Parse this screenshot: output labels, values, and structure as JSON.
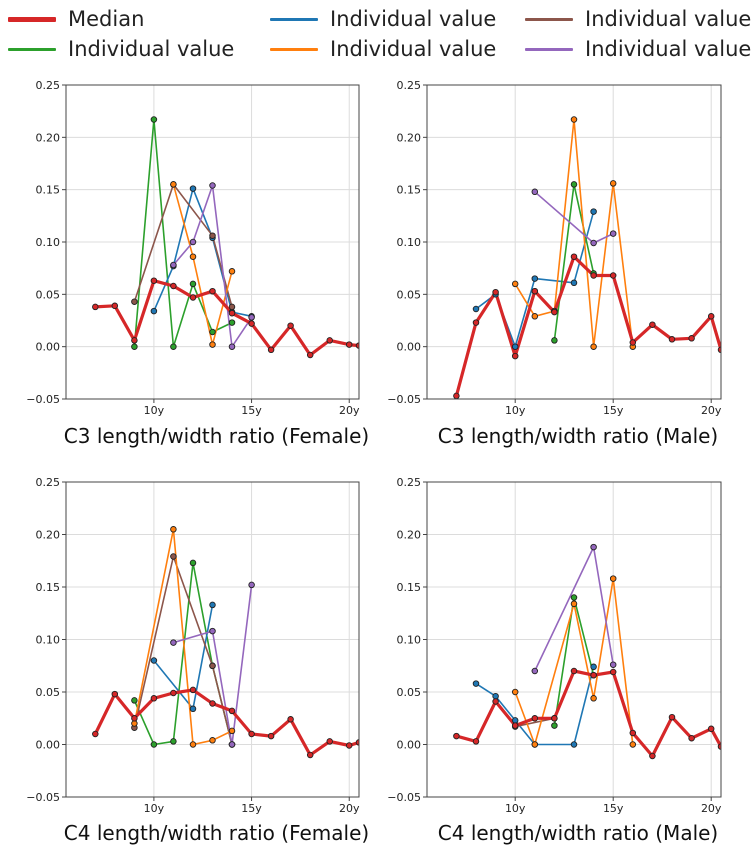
{
  "legend": [
    {
      "label": "Median",
      "color": "#d62728",
      "width": 5
    },
    {
      "label": "Individual value",
      "color": "#1f77b4",
      "width": 3
    },
    {
      "label": "Individual value",
      "color": "#8c564b",
      "width": 3
    },
    {
      "label": "Individual value",
      "color": "#2ca02c",
      "width": 3
    },
    {
      "label": "Individual value",
      "color": "#ff7f0e",
      "width": 3
    },
    {
      "label": "Individual value",
      "color": "#9467bd",
      "width": 3
    }
  ],
  "chart_data": [
    {
      "type": "line",
      "title": "C3 length/width ratio (Female)",
      "xlim": [
        5.5,
        20.5
      ],
      "ylim": [
        -0.05,
        0.25
      ],
      "xticks": [
        {
          "value": 10,
          "label": "10y"
        },
        {
          "value": 15,
          "label": "15y"
        },
        {
          "value": 20,
          "label": "20y"
        }
      ],
      "yticks": [
        {
          "value": -0.05,
          "label": "−0.05"
        },
        {
          "value": 0,
          "label": "0.00"
        },
        {
          "value": 0.05,
          "label": "0.05"
        },
        {
          "value": 0.1,
          "label": "0.10"
        },
        {
          "value": 0.15,
          "label": "0.15"
        },
        {
          "value": 0.2,
          "label": "0.20"
        },
        {
          "value": 0.25,
          "label": "0.25"
        }
      ],
      "grid": true,
      "series": [
        {
          "color": "#2ca02c",
          "x": [
            9,
            10,
            11,
            12,
            13,
            14
          ],
          "y": [
            0.0,
            0.217,
            0.0,
            0.06,
            0.014,
            0.023
          ]
        },
        {
          "color": "#1f77b4",
          "x": [
            10,
            11,
            12,
            13,
            14,
            15
          ],
          "y": [
            0.034,
            0.077,
            0.151,
            0.104,
            0.033,
            0.029
          ]
        },
        {
          "color": "#8c564b",
          "x": [
            9,
            11,
            13,
            14
          ],
          "y": [
            0.043,
            0.155,
            0.106,
            0.038
          ]
        },
        {
          "color": "#ff7f0e",
          "x": [
            11,
            12,
            13,
            14
          ],
          "y": [
            0.155,
            0.086,
            0.002,
            0.072
          ]
        },
        {
          "color": "#9467bd",
          "x": [
            11,
            12,
            13,
            14,
            15
          ],
          "y": [
            0.078,
            0.1,
            0.154,
            0.0,
            0.028
          ]
        },
        {
          "color": "#d62728",
          "median": true,
          "x": [
            7,
            8,
            9,
            10,
            11,
            12,
            13,
            14,
            15,
            16,
            17,
            18,
            19,
            20,
            20.5
          ],
          "y": [
            0.038,
            0.039,
            0.006,
            0.063,
            0.058,
            0.047,
            0.053,
            0.032,
            0.022,
            -0.003,
            0.02,
            -0.008,
            0.006,
            0.002,
            0.001
          ]
        }
      ]
    },
    {
      "type": "line",
      "title": "C3 length/width ratio (Male)",
      "xlim": [
        5.5,
        20.5
      ],
      "ylim": [
        -0.05,
        0.25
      ],
      "xticks": [
        {
          "value": 10,
          "label": "10y"
        },
        {
          "value": 15,
          "label": "15y"
        },
        {
          "value": 20,
          "label": "20y"
        }
      ],
      "yticks": [
        {
          "value": -0.05,
          "label": "−0.05"
        },
        {
          "value": 0,
          "label": "0.00"
        },
        {
          "value": 0.05,
          "label": "0.05"
        },
        {
          "value": 0.1,
          "label": "0.10"
        },
        {
          "value": 0.15,
          "label": "0.15"
        },
        {
          "value": 0.2,
          "label": "0.20"
        },
        {
          "value": 0.25,
          "label": "0.25"
        }
      ],
      "grid": true,
      "series": [
        {
          "color": "#1f77b4",
          "x": [
            8,
            9,
            10,
            11,
            13,
            14
          ],
          "y": [
            0.036,
            0.05,
            0.0,
            0.065,
            0.061,
            0.129
          ]
        },
        {
          "color": "#8c564b",
          "x": [
            11,
            12
          ],
          "y": [
            0.053,
            0.034
          ]
        },
        {
          "color": "#2ca02c",
          "x": [
            12,
            13,
            14
          ],
          "y": [
            0.006,
            0.155,
            0.07
          ]
        },
        {
          "color": "#ff7f0e",
          "x": [
            10,
            11,
            12,
            13,
            14,
            15,
            16
          ],
          "y": [
            0.06,
            0.029,
            0.034,
            0.217,
            0.0,
            0.156,
            0.0
          ]
        },
        {
          "color": "#9467bd",
          "x": [
            11,
            14,
            15
          ],
          "y": [
            0.148,
            0.099,
            0.108
          ]
        },
        {
          "color": "#d62728",
          "median": true,
          "x": [
            7,
            8,
            9,
            10,
            11,
            12,
            13,
            14,
            15,
            16,
            17,
            18,
            19,
            20,
            20.5
          ],
          "y": [
            -0.047,
            0.023,
            0.052,
            -0.009,
            0.053,
            0.033,
            0.086,
            0.068,
            0.068,
            0.004,
            0.021,
            0.007,
            0.008,
            0.029,
            -0.003
          ]
        }
      ]
    },
    {
      "type": "line",
      "title": "C4 length/width ratio (Female)",
      "xlim": [
        5.5,
        20.5
      ],
      "ylim": [
        -0.05,
        0.25
      ],
      "xticks": [
        {
          "value": 10,
          "label": "10y"
        },
        {
          "value": 15,
          "label": "15y"
        },
        {
          "value": 20,
          "label": "20y"
        }
      ],
      "yticks": [
        {
          "value": -0.05,
          "label": "−0.05"
        },
        {
          "value": 0,
          "label": "0.00"
        },
        {
          "value": 0.05,
          "label": "0.05"
        },
        {
          "value": 0.1,
          "label": "0.10"
        },
        {
          "value": 0.15,
          "label": "0.15"
        },
        {
          "value": 0.2,
          "label": "0.20"
        },
        {
          "value": 0.25,
          "label": "0.25"
        }
      ],
      "grid": true,
      "series": [
        {
          "color": "#2ca02c",
          "x": [
            9,
            10,
            11,
            12,
            13,
            14
          ],
          "y": [
            0.042,
            0.0,
            0.003,
            0.173,
            0.075,
            0.0
          ]
        },
        {
          "color": "#1f77b4",
          "x": [
            10,
            12,
            13
          ],
          "y": [
            0.08,
            0.034,
            0.133
          ]
        },
        {
          "color": "#8c564b",
          "x": [
            9,
            11,
            13,
            14
          ],
          "y": [
            0.016,
            0.179,
            0.075,
            0.0
          ]
        },
        {
          "color": "#ff7f0e",
          "x": [
            9,
            11,
            12,
            13,
            14
          ],
          "y": [
            0.02,
            0.205,
            0.0,
            0.004,
            0.013
          ]
        },
        {
          "color": "#9467bd",
          "x": [
            11,
            13,
            14,
            15
          ],
          "y": [
            0.097,
            0.108,
            0.0,
            0.152
          ]
        },
        {
          "color": "#d62728",
          "median": true,
          "x": [
            7,
            8,
            9,
            10,
            11,
            12,
            13,
            14,
            15,
            16,
            17,
            18,
            19,
            20,
            20.5
          ],
          "y": [
            0.01,
            0.048,
            0.025,
            0.044,
            0.049,
            0.052,
            0.039,
            0.032,
            0.01,
            0.008,
            0.024,
            -0.01,
            0.003,
            -0.001,
            0.002
          ]
        }
      ]
    },
    {
      "type": "line",
      "title": "C4 length/width ratio (Male)",
      "xlim": [
        5.5,
        20.5
      ],
      "ylim": [
        -0.05,
        0.25
      ],
      "xticks": [
        {
          "value": 10,
          "label": "10y"
        },
        {
          "value": 15,
          "label": "15y"
        },
        {
          "value": 20,
          "label": "20y"
        }
      ],
      "yticks": [
        {
          "value": -0.05,
          "label": "−0.05"
        },
        {
          "value": 0,
          "label": "0.00"
        },
        {
          "value": 0.05,
          "label": "0.05"
        },
        {
          "value": 0.1,
          "label": "0.10"
        },
        {
          "value": 0.15,
          "label": "0.15"
        },
        {
          "value": 0.2,
          "label": "0.20"
        },
        {
          "value": 0.25,
          "label": "0.25"
        }
      ],
      "grid": true,
      "series": [
        {
          "color": "#1f77b4",
          "x": [
            8,
            9,
            10,
            11,
            13,
            14
          ],
          "y": [
            0.058,
            0.046,
            0.023,
            0.0,
            0.0,
            0.074
          ]
        },
        {
          "color": "#8c564b",
          "x": [
            10,
            12
          ],
          "y": [
            0.017,
            0.025
          ]
        },
        {
          "color": "#2ca02c",
          "x": [
            12,
            13,
            14
          ],
          "y": [
            0.018,
            0.14,
            0.066
          ]
        },
        {
          "color": "#ff7f0e",
          "x": [
            10,
            11,
            13,
            14,
            15,
            16
          ],
          "y": [
            0.05,
            0.0,
            0.134,
            0.044,
            0.158,
            0.0
          ]
        },
        {
          "color": "#9467bd",
          "x": [
            11,
            14,
            15
          ],
          "y": [
            0.07,
            0.188,
            0.076
          ]
        },
        {
          "color": "#d62728",
          "median": true,
          "x": [
            7,
            8,
            9,
            10,
            11,
            12,
            13,
            14,
            15,
            16,
            17,
            18,
            19,
            20,
            20.5
          ],
          "y": [
            0.008,
            0.003,
            0.041,
            0.018,
            0.025,
            0.025,
            0.07,
            0.066,
            0.069,
            0.011,
            -0.011,
            0.026,
            0.006,
            0.015,
            -0.002
          ]
        }
      ]
    }
  ]
}
